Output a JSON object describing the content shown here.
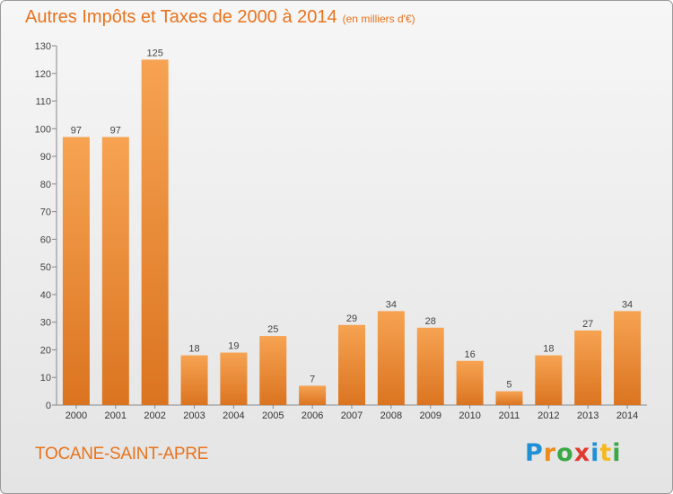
{
  "header": {
    "title": "Autres Impôts et Taxes de 2000 à 2014",
    "unit": "(en milliers d'€)"
  },
  "footer": {
    "commune": "TOCANE-SAINT-APRE",
    "logo_letters": [
      "P",
      "r",
      "o",
      "x",
      "i",
      "t",
      "i"
    ],
    "logo_colors": [
      "#1f8fd6",
      "#f08a1a",
      "#39a845",
      "#e03a2f",
      "#1f8fd6",
      "#f5b921",
      "#39a845"
    ]
  },
  "colors": {
    "bar_top": "#f6a352",
    "bar_bottom": "#db7420",
    "accent": "#e8731d",
    "axis": "#888888"
  },
  "chart_data": {
    "type": "bar",
    "categories": [
      "2000",
      "2001",
      "2002",
      "2003",
      "2004",
      "2005",
      "2006",
      "2007",
      "2008",
      "2009",
      "2010",
      "2011",
      "2012",
      "2013",
      "2014"
    ],
    "values": [
      97,
      97,
      125,
      18,
      19,
      25,
      7,
      29,
      34,
      28,
      16,
      5,
      18,
      27,
      34
    ],
    "ylim": [
      0,
      130
    ],
    "yticks": [
      0,
      10,
      20,
      30,
      40,
      50,
      60,
      70,
      80,
      90,
      100,
      110,
      120,
      130
    ],
    "grid": false
  }
}
